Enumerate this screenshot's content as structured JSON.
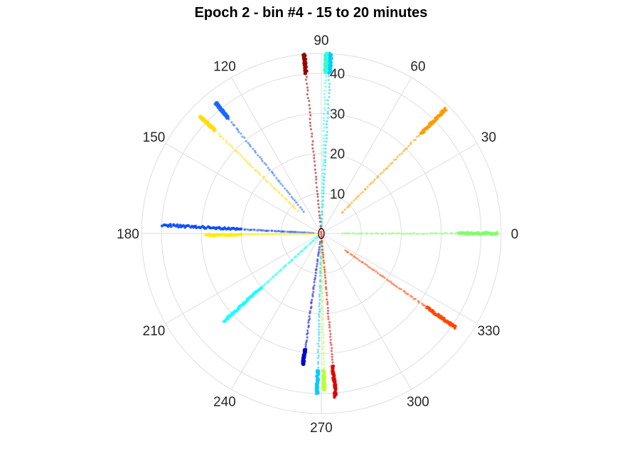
{
  "chart_data": {
    "type": "scatter",
    "coordinate_system": "polar",
    "title": "Epoch 2 - bin #4 - 15 to 20 minutes",
    "theta_ticks": [
      0,
      30,
      60,
      90,
      120,
      150,
      180,
      210,
      240,
      270,
      300,
      330
    ],
    "theta_tick_labels": [
      "0",
      "30",
      "60",
      "90",
      "120",
      "150",
      "180",
      "210",
      "240",
      "270",
      "300",
      "330"
    ],
    "r_ticks": [
      10,
      20,
      30,
      40
    ],
    "r_tick_labels": [
      "10",
      "20",
      "30",
      "40"
    ],
    "r_lim": [
      0,
      45
    ],
    "theta_direction": "counterclockwise",
    "theta_zero": "right",
    "grid": true,
    "legend": "none",
    "series": [
      {
        "theta": 0,
        "r_start": 5,
        "r_end": 44,
        "dense_from": 34,
        "color": "#80ff66"
      },
      {
        "theta": 45,
        "r_start": 7,
        "r_end": 44,
        "dense_from": 35,
        "color": "#ff9900"
      },
      {
        "theta": 87,
        "r_start": 1,
        "r_end": 45,
        "dense_from": 40,
        "color": "#00ccff"
      },
      {
        "theta": 88.5,
        "r_start": 1,
        "r_end": 45,
        "dense_from": 40,
        "color": "#33ffcc"
      },
      {
        "theta": 95.5,
        "r_start": 0,
        "r_end": 45,
        "dense_from": 40,
        "color": "#990000"
      },
      {
        "theta": 129,
        "r_start": 7,
        "r_end": 42,
        "dense_from": 37,
        "color": "#1a66ff"
      },
      {
        "theta": 136,
        "r_start": 8,
        "r_end": 42,
        "dense_from": 37,
        "color": "#ffdd00"
      },
      {
        "theta": 177,
        "r_start": 2,
        "r_end": 40,
        "dense_from": 20,
        "color": "#0044ff"
      },
      {
        "theta": 180.8,
        "r_start": 1,
        "r_end": 29,
        "dense_from": 20,
        "color": "#ffee00"
      },
      {
        "theta": 222,
        "r_start": 1,
        "r_end": 33,
        "dense_from": 20,
        "color": "#11ffff"
      },
      {
        "theta": 262,
        "r_start": 2,
        "r_end": 33,
        "dense_from": 29,
        "color": "#0000cc"
      },
      {
        "theta": 268.5,
        "r_start": 1,
        "r_end": 40,
        "dense_from": 34,
        "color": "#00ccff"
      },
      {
        "theta": 271,
        "r_start": 1,
        "r_end": 39,
        "dense_from": 34,
        "color": "#bbff33"
      },
      {
        "theta": 275,
        "r_start": 0,
        "r_end": 41,
        "dense_from": 33,
        "color": "#dd0000"
      },
      {
        "theta": 325,
        "r_start": 7,
        "r_end": 41,
        "dense_from": 32,
        "color": "#ff4400"
      }
    ]
  }
}
